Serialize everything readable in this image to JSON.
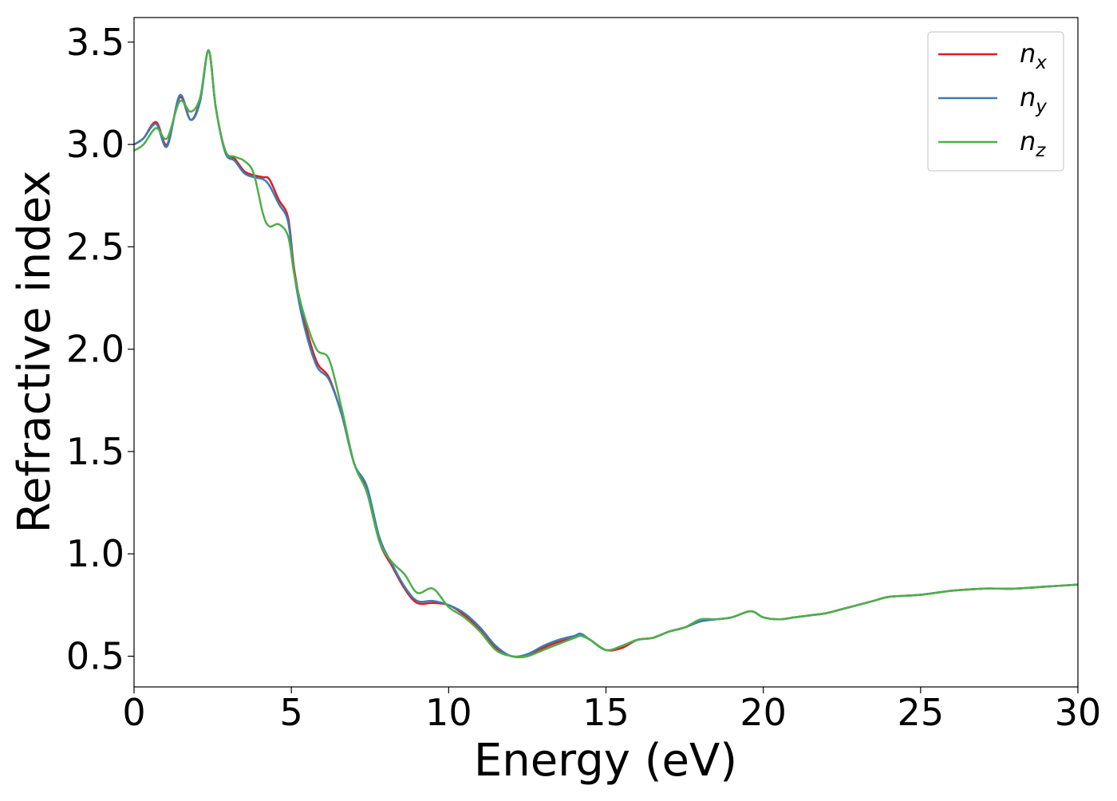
{
  "chart_data": {
    "type": "line",
    "xlabel": "Energy (eV)",
    "ylabel": "Refractive index",
    "xlim": [
      0,
      30
    ],
    "ylim": [
      0.35,
      3.62
    ],
    "xticks": [
      0,
      5,
      10,
      15,
      20,
      25,
      30
    ],
    "xtick_labels": [
      "0",
      "5",
      "10",
      "15",
      "20",
      "25",
      "30"
    ],
    "yticks": [
      0.5,
      1.0,
      1.5,
      2.0,
      2.5,
      3.0,
      3.5
    ],
    "ytick_labels": [
      "0.5",
      "1.0",
      "1.5",
      "2.0",
      "2.5",
      "3.0",
      "3.5"
    ],
    "grid": false,
    "legend_position": "top-right",
    "series": [
      {
        "name": "n_x",
        "legend_base": "n",
        "legend_sub": "x",
        "color": "#e41a1c",
        "points": [
          [
            0,
            3.0
          ],
          [
            0.3,
            3.03
          ],
          [
            0.7,
            3.11
          ],
          [
            1.05,
            3.0
          ],
          [
            1.45,
            3.23
          ],
          [
            1.8,
            3.12
          ],
          [
            2.1,
            3.22
          ],
          [
            2.37,
            3.46
          ],
          [
            2.6,
            3.18
          ],
          [
            2.9,
            2.97
          ],
          [
            3.2,
            2.93
          ],
          [
            3.5,
            2.87
          ],
          [
            3.8,
            2.85
          ],
          [
            4.1,
            2.84
          ],
          [
            4.3,
            2.83
          ],
          [
            4.6,
            2.73
          ],
          [
            4.9,
            2.64
          ],
          [
            5.1,
            2.38
          ],
          [
            5.4,
            2.15
          ],
          [
            5.8,
            1.94
          ],
          [
            6.2,
            1.86
          ],
          [
            6.6,
            1.68
          ],
          [
            7.0,
            1.44
          ],
          [
            7.4,
            1.32
          ],
          [
            7.8,
            1.06
          ],
          [
            8.2,
            0.94
          ],
          [
            8.6,
            0.83
          ],
          [
            9.0,
            0.76
          ],
          [
            9.5,
            0.76
          ],
          [
            10.0,
            0.75
          ],
          [
            10.5,
            0.7
          ],
          [
            11.0,
            0.63
          ],
          [
            11.5,
            0.54
          ],
          [
            12.0,
            0.5
          ],
          [
            12.5,
            0.5
          ],
          [
            13.0,
            0.54
          ],
          [
            13.5,
            0.57
          ],
          [
            14.0,
            0.59
          ],
          [
            14.2,
            0.6
          ],
          [
            14.5,
            0.58
          ],
          [
            15.0,
            0.53
          ],
          [
            15.5,
            0.54
          ],
          [
            16.0,
            0.58
          ],
          [
            16.5,
            0.59
          ],
          [
            17.0,
            0.62
          ],
          [
            17.5,
            0.64
          ],
          [
            18.0,
            0.67
          ],
          [
            18.5,
            0.68
          ],
          [
            19.0,
            0.69
          ],
          [
            19.6,
            0.72
          ],
          [
            20.0,
            0.69
          ],
          [
            20.5,
            0.68
          ],
          [
            21.0,
            0.69
          ],
          [
            21.5,
            0.7
          ],
          [
            22.0,
            0.71
          ],
          [
            22.5,
            0.73
          ],
          [
            23.0,
            0.75
          ],
          [
            23.5,
            0.77
          ],
          [
            24.0,
            0.79
          ],
          [
            25.0,
            0.8
          ],
          [
            26.0,
            0.82
          ],
          [
            27.0,
            0.83
          ],
          [
            27.5,
            0.83
          ],
          [
            28.0,
            0.83
          ],
          [
            29.0,
            0.84
          ],
          [
            30.0,
            0.85
          ]
        ]
      },
      {
        "name": "n_y",
        "legend_base": "n",
        "legend_sub": "y",
        "color": "#377eb8",
        "points": [
          [
            0,
            3.0
          ],
          [
            0.3,
            3.03
          ],
          [
            0.7,
            3.1
          ],
          [
            1.05,
            2.99
          ],
          [
            1.45,
            3.24
          ],
          [
            1.8,
            3.12
          ],
          [
            2.1,
            3.21
          ],
          [
            2.37,
            3.46
          ],
          [
            2.6,
            3.18
          ],
          [
            2.9,
            2.96
          ],
          [
            3.2,
            2.92
          ],
          [
            3.5,
            2.86
          ],
          [
            3.8,
            2.84
          ],
          [
            4.1,
            2.83
          ],
          [
            4.3,
            2.8
          ],
          [
            4.6,
            2.71
          ],
          [
            4.9,
            2.62
          ],
          [
            5.1,
            2.36
          ],
          [
            5.4,
            2.12
          ],
          [
            5.8,
            1.92
          ],
          [
            6.2,
            1.85
          ],
          [
            6.6,
            1.68
          ],
          [
            7.0,
            1.44
          ],
          [
            7.4,
            1.33
          ],
          [
            7.8,
            1.08
          ],
          [
            8.2,
            0.95
          ],
          [
            8.6,
            0.84
          ],
          [
            9.0,
            0.77
          ],
          [
            9.5,
            0.77
          ],
          [
            10.0,
            0.75
          ],
          [
            10.5,
            0.71
          ],
          [
            11.0,
            0.64
          ],
          [
            11.5,
            0.55
          ],
          [
            12.0,
            0.5
          ],
          [
            12.5,
            0.51
          ],
          [
            13.0,
            0.55
          ],
          [
            13.5,
            0.58
          ],
          [
            14.0,
            0.6
          ],
          [
            14.2,
            0.61
          ],
          [
            14.5,
            0.58
          ],
          [
            15.0,
            0.53
          ],
          [
            15.5,
            0.55
          ],
          [
            16.0,
            0.58
          ],
          [
            16.5,
            0.59
          ],
          [
            17.0,
            0.62
          ],
          [
            17.5,
            0.64
          ],
          [
            18.0,
            0.67
          ],
          [
            18.5,
            0.68
          ],
          [
            19.0,
            0.69
          ],
          [
            19.6,
            0.72
          ],
          [
            20.0,
            0.69
          ],
          [
            20.5,
            0.68
          ],
          [
            21.0,
            0.69
          ],
          [
            21.5,
            0.7
          ],
          [
            22.0,
            0.71
          ],
          [
            22.5,
            0.73
          ],
          [
            23.0,
            0.75
          ],
          [
            23.5,
            0.77
          ],
          [
            24.0,
            0.79
          ],
          [
            25.0,
            0.8
          ],
          [
            26.0,
            0.82
          ],
          [
            27.0,
            0.83
          ],
          [
            27.5,
            0.83
          ],
          [
            28.0,
            0.83
          ],
          [
            29.0,
            0.84
          ],
          [
            30.0,
            0.85
          ]
        ]
      },
      {
        "name": "n_z",
        "legend_base": "n",
        "legend_sub": "z",
        "color": "#4daf4a",
        "points": [
          [
            0,
            2.97
          ],
          [
            0.3,
            3.0
          ],
          [
            0.7,
            3.08
          ],
          [
            1.05,
            3.03
          ],
          [
            1.45,
            3.21
          ],
          [
            1.8,
            3.16
          ],
          [
            2.1,
            3.23
          ],
          [
            2.37,
            3.46
          ],
          [
            2.6,
            3.18
          ],
          [
            2.9,
            2.97
          ],
          [
            3.2,
            2.94
          ],
          [
            3.5,
            2.92
          ],
          [
            3.8,
            2.86
          ],
          [
            4.1,
            2.66
          ],
          [
            4.3,
            2.6
          ],
          [
            4.6,
            2.61
          ],
          [
            4.9,
            2.55
          ],
          [
            5.1,
            2.36
          ],
          [
            5.4,
            2.17
          ],
          [
            5.8,
            2.0
          ],
          [
            6.2,
            1.95
          ],
          [
            6.6,
            1.71
          ],
          [
            7.0,
            1.44
          ],
          [
            7.4,
            1.3
          ],
          [
            7.8,
            1.06
          ],
          [
            8.2,
            0.96
          ],
          [
            8.6,
            0.9
          ],
          [
            9.0,
            0.81
          ],
          [
            9.5,
            0.83
          ],
          [
            10.0,
            0.74
          ],
          [
            10.5,
            0.69
          ],
          [
            11.0,
            0.62
          ],
          [
            11.5,
            0.53
          ],
          [
            12.0,
            0.5
          ],
          [
            12.5,
            0.5
          ],
          [
            13.0,
            0.53
          ],
          [
            13.5,
            0.56
          ],
          [
            14.0,
            0.59
          ],
          [
            14.2,
            0.6
          ],
          [
            14.5,
            0.58
          ],
          [
            15.0,
            0.53
          ],
          [
            15.5,
            0.55
          ],
          [
            16.0,
            0.58
          ],
          [
            16.5,
            0.59
          ],
          [
            17.0,
            0.62
          ],
          [
            17.5,
            0.64
          ],
          [
            18.0,
            0.68
          ],
          [
            18.5,
            0.68
          ],
          [
            19.0,
            0.69
          ],
          [
            19.6,
            0.72
          ],
          [
            20.0,
            0.69
          ],
          [
            20.5,
            0.68
          ],
          [
            21.0,
            0.69
          ],
          [
            21.5,
            0.7
          ],
          [
            22.0,
            0.71
          ],
          [
            22.5,
            0.73
          ],
          [
            23.0,
            0.75
          ],
          [
            23.5,
            0.77
          ],
          [
            24.0,
            0.79
          ],
          [
            25.0,
            0.8
          ],
          [
            26.0,
            0.82
          ],
          [
            27.0,
            0.83
          ],
          [
            27.5,
            0.83
          ],
          [
            28.0,
            0.83
          ],
          [
            29.0,
            0.84
          ],
          [
            30.0,
            0.85
          ]
        ]
      }
    ]
  }
}
